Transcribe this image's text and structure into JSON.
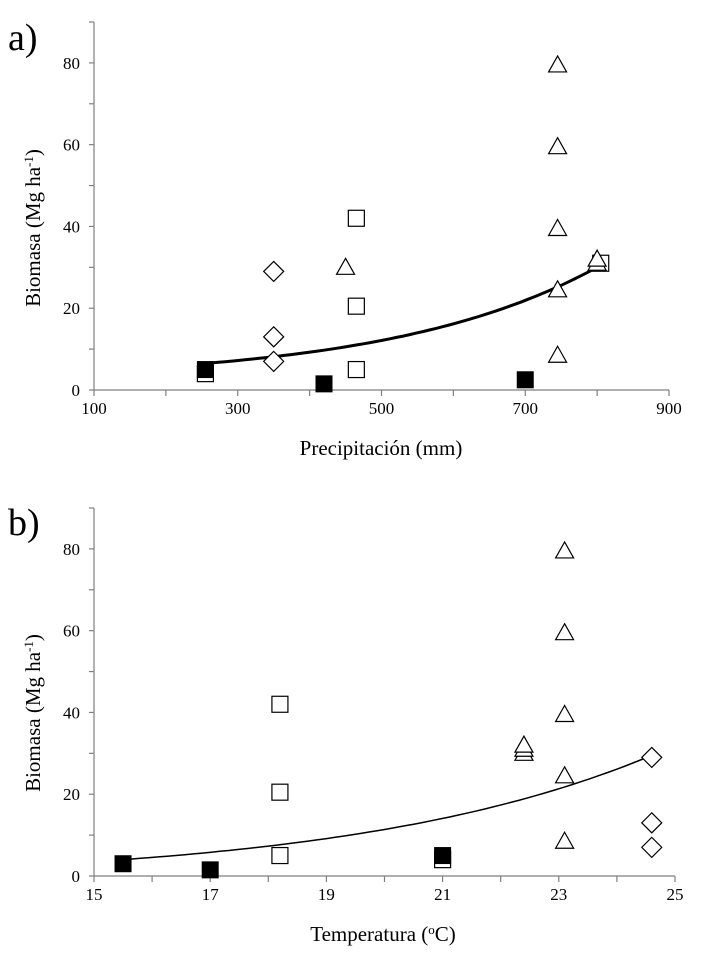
{
  "chart_data": [
    {
      "type": "scatter",
      "panel_label": "a)",
      "xlabel": "Precipitación (mm)",
      "ylabel_main": "Biomasa (Mg ha",
      "ylabel_sup": "-1",
      "ylabel_end": ")",
      "xlim": [
        100,
        900
      ],
      "ylim": [
        0,
        90
      ],
      "xticks": [
        100,
        300,
        500,
        700,
        900
      ],
      "yticks": [
        0,
        20,
        40,
        60,
        80
      ],
      "series": [
        {
          "name": "open-square",
          "marker": "square",
          "filled": false,
          "points": [
            [
              255,
              4
            ],
            [
              465,
              42
            ],
            [
              465,
              20.5
            ],
            [
              465,
              5
            ],
            [
              805,
              31
            ]
          ]
        },
        {
          "name": "filled-square",
          "marker": "square",
          "filled": true,
          "points": [
            [
              255,
              5
            ],
            [
              420,
              1.5
            ],
            [
              700,
              2.5
            ]
          ]
        },
        {
          "name": "diamond",
          "marker": "diamond",
          "filled": false,
          "points": [
            [
              350,
              29
            ],
            [
              350,
              13
            ],
            [
              350,
              7
            ]
          ]
        },
        {
          "name": "triangle",
          "marker": "triangle",
          "filled": false,
          "points": [
            [
              450,
              30
            ],
            [
              745,
              79.5
            ],
            [
              745,
              59.5
            ],
            [
              745,
              39.5
            ],
            [
              745,
              24.5
            ],
            [
              745,
              8.5
            ],
            [
              800,
              31
            ],
            [
              800,
              32
            ]
          ]
        }
      ],
      "trendline": {
        "x_start": 255,
        "x_end": 805,
        "y_start": 6.5,
        "y_end": 30.5
      }
    },
    {
      "type": "scatter",
      "panel_label": "b)",
      "xlabel": "Temperatura (",
      "xlabel_sup": "o",
      "xlabel_end": "C)",
      "ylabel_main": "Biomasa (Mg ha",
      "ylabel_sup": "-1",
      "ylabel_end": ")",
      "xlim": [
        15,
        25
      ],
      "ylim": [
        0,
        90
      ],
      "xticks": [
        15,
        17,
        19,
        21,
        23,
        25
      ],
      "yticks": [
        0,
        20,
        40,
        60,
        80
      ],
      "series": [
        {
          "name": "open-square",
          "marker": "square",
          "filled": false,
          "points": [
            [
              18.2,
              42
            ],
            [
              18.2,
              20.5
            ],
            [
              18.2,
              5
            ],
            [
              21.0,
              4
            ]
          ]
        },
        {
          "name": "filled-square",
          "marker": "square",
          "filled": true,
          "points": [
            [
              15.5,
              3
            ],
            [
              17.0,
              1.5
            ],
            [
              21.0,
              5
            ]
          ]
        },
        {
          "name": "diamond",
          "marker": "diamond",
          "filled": false,
          "points": [
            [
              24.6,
              29
            ],
            [
              24.6,
              13
            ],
            [
              24.6,
              7
            ]
          ]
        },
        {
          "name": "triangle",
          "marker": "triangle",
          "filled": false,
          "points": [
            [
              22.4,
              30
            ],
            [
              22.4,
              31
            ],
            [
              22.4,
              32
            ],
            [
              23.1,
              79.5
            ],
            [
              23.1,
              59.5
            ],
            [
              23.1,
              39.5
            ],
            [
              23.1,
              24.5
            ],
            [
              23.1,
              8.5
            ]
          ]
        }
      ],
      "trendline": {
        "x_start": 15.5,
        "x_end": 24.6,
        "y_start": 4,
        "y_end": 29.5
      }
    }
  ]
}
